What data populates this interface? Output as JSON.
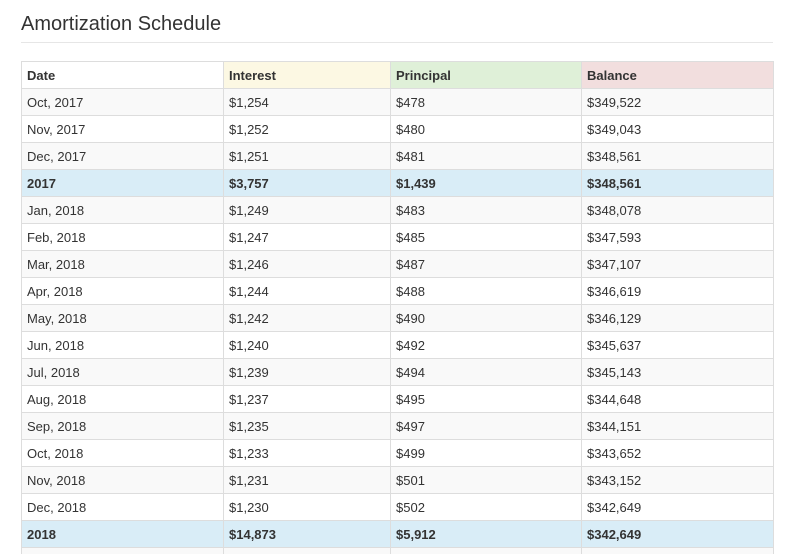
{
  "page": {
    "title": "Amortization Schedule"
  },
  "table": {
    "headers": {
      "date": "Date",
      "interest": "Interest",
      "principal": "Principal",
      "balance": "Balance"
    },
    "header_colors": {
      "interest": "#fcf8e3",
      "principal": "#dff0d8",
      "balance": "#f2dede",
      "total_row": "#d9edf7"
    },
    "rows": [
      {
        "type": "month",
        "date": "Oct, 2017",
        "interest": "$1,254",
        "principal": "$478",
        "balance": "$349,522"
      },
      {
        "type": "month",
        "date": "Nov, 2017",
        "interest": "$1,252",
        "principal": "$480",
        "balance": "$349,043"
      },
      {
        "type": "month",
        "date": "Dec, 2017",
        "interest": "$1,251",
        "principal": "$481",
        "balance": "$348,561"
      },
      {
        "type": "total",
        "date": "2017",
        "interest": "$3,757",
        "principal": "$1,439",
        "balance": "$348,561"
      },
      {
        "type": "month",
        "date": "Jan, 2018",
        "interest": "$1,249",
        "principal": "$483",
        "balance": "$348,078"
      },
      {
        "type": "month",
        "date": "Feb, 2018",
        "interest": "$1,247",
        "principal": "$485",
        "balance": "$347,593"
      },
      {
        "type": "month",
        "date": "Mar, 2018",
        "interest": "$1,246",
        "principal": "$487",
        "balance": "$347,107"
      },
      {
        "type": "month",
        "date": "Apr, 2018",
        "interest": "$1,244",
        "principal": "$488",
        "balance": "$346,619"
      },
      {
        "type": "month",
        "date": "May, 2018",
        "interest": "$1,242",
        "principal": "$490",
        "balance": "$346,129"
      },
      {
        "type": "month",
        "date": "Jun, 2018",
        "interest": "$1,240",
        "principal": "$492",
        "balance": "$345,637"
      },
      {
        "type": "month",
        "date": "Jul, 2018",
        "interest": "$1,239",
        "principal": "$494",
        "balance": "$345,143"
      },
      {
        "type": "month",
        "date": "Aug, 2018",
        "interest": "$1,237",
        "principal": "$495",
        "balance": "$344,648"
      },
      {
        "type": "month",
        "date": "Sep, 2018",
        "interest": "$1,235",
        "principal": "$497",
        "balance": "$344,151"
      },
      {
        "type": "month",
        "date": "Oct, 2018",
        "interest": "$1,233",
        "principal": "$499",
        "balance": "$343,652"
      },
      {
        "type": "month",
        "date": "Nov, 2018",
        "interest": "$1,231",
        "principal": "$501",
        "balance": "$343,152"
      },
      {
        "type": "month",
        "date": "Dec, 2018",
        "interest": "$1,230",
        "principal": "$502",
        "balance": "$342,649"
      },
      {
        "type": "total",
        "date": "2018",
        "interest": "$14,873",
        "principal": "$5,912",
        "balance": "$342,649"
      }
    ]
  }
}
